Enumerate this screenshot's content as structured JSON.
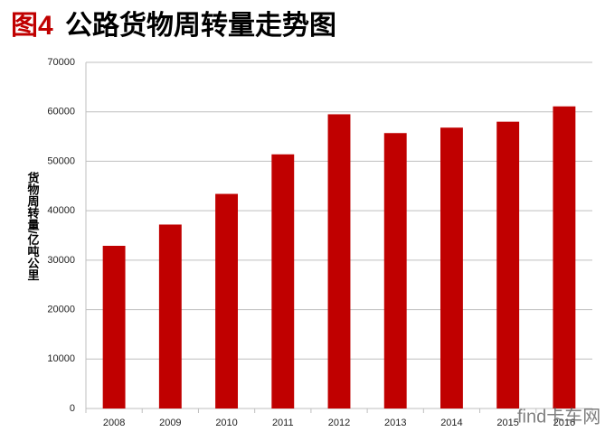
{
  "chart_data": {
    "type": "bar",
    "title_prefix": "图4",
    "title": "公路货物周转量走势图",
    "y_label": "货物周转量/亿吨公里",
    "watermark": "find卡车网",
    "categories": [
      "2008",
      "2009",
      "2010",
      "2011",
      "2012",
      "2013",
      "2014",
      "2015",
      "2016"
    ],
    "values": [
      32900,
      37200,
      43400,
      51400,
      59500,
      55700,
      56800,
      58000,
      61100
    ],
    "color": "#c00000",
    "ylim": [
      0,
      70000
    ],
    "yticks": [
      0,
      10000,
      20000,
      30000,
      40000,
      50000,
      60000,
      70000
    ],
    "grid": true
  }
}
